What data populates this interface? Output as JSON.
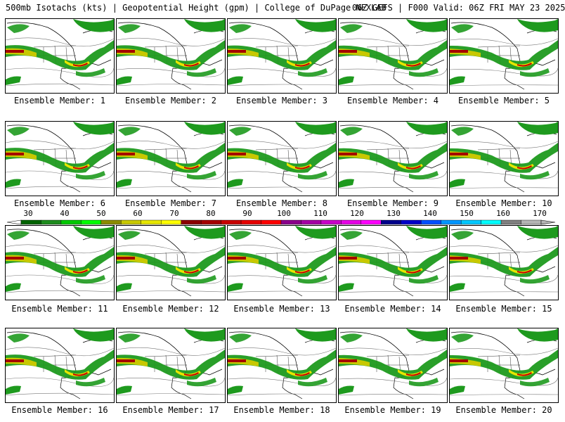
{
  "header": {
    "left": "500mb Isotachs (kts) | Geopotential Height (gpm) | College of DuPage NEXLAB",
    "right": "06Z GEFS | F000 Valid: 06Z FRI MAY 23 2025"
  },
  "members": [
    {
      "label": "Ensemble Member: 1"
    },
    {
      "label": "Ensemble Member: 2"
    },
    {
      "label": "Ensemble Member: 3"
    },
    {
      "label": "Ensemble Member: 4"
    },
    {
      "label": "Ensemble Member: 5"
    },
    {
      "label": "Ensemble Member: 6"
    },
    {
      "label": "Ensemble Member: 7"
    },
    {
      "label": "Ensemble Member: 8"
    },
    {
      "label": "Ensemble Member: 9"
    },
    {
      "label": "Ensemble Member: 10"
    },
    {
      "label": "Ensemble Member: 11"
    },
    {
      "label": "Ensemble Member: 12"
    },
    {
      "label": "Ensemble Member: 13"
    },
    {
      "label": "Ensemble Member: 14"
    },
    {
      "label": "Ensemble Member: 15"
    },
    {
      "label": "Ensemble Member: 16"
    },
    {
      "label": "Ensemble Member: 17"
    },
    {
      "label": "Ensemble Member: 18"
    },
    {
      "label": "Ensemble Member: 19"
    },
    {
      "label": "Ensemble Member: 20"
    }
  ],
  "colorbar": {
    "tick_labels": [
      "30",
      "40",
      "50",
      "60",
      "70",
      "80",
      "90",
      "100",
      "110",
      "120",
      "130",
      "140",
      "150",
      "160",
      "170"
    ],
    "colors": [
      "#006400",
      "#1e8c1e",
      "#00c800",
      "#00ff00",
      "#8b8b00",
      "#c8c800",
      "#e6e600",
      "#ffff00",
      "#8b0000",
      "#a50000",
      "#c80000",
      "#e60000",
      "#ff0000",
      "#8b008b",
      "#a500a5",
      "#c800c8",
      "#e600e6",
      "#ff00ff",
      "#00008b",
      "#0000c8",
      "#0050ff",
      "#0096ff",
      "#00c8ff",
      "#00ffff",
      "#808080",
      "#b4b4b4"
    ]
  }
}
